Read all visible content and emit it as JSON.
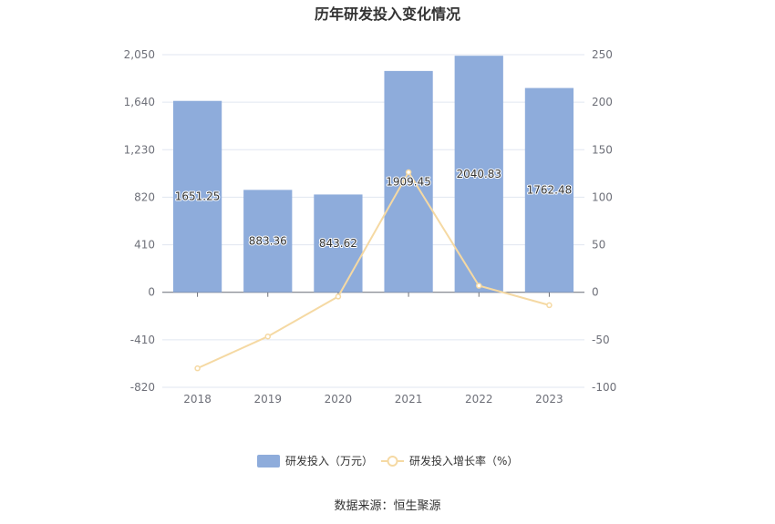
{
  "chart_data": {
    "type": "bar",
    "title": "历年研发投入变化情况",
    "categories": [
      "2018",
      "2019",
      "2020",
      "2021",
      "2022",
      "2023"
    ],
    "series": [
      {
        "name": "研发投入（万元）",
        "type": "bar",
        "axis": "left",
        "values": [
          1651.25,
          883.36,
          843.62,
          1909.45,
          2040.83,
          1762.48
        ],
        "labels": [
          "1651.25",
          "883.36",
          "843.62",
          "1909.45",
          "2040.83",
          "1762.48"
        ],
        "color": "#8eacdb"
      },
      {
        "name": "研发投入增长率（%）",
        "type": "line",
        "axis": "right",
        "values": [
          -80,
          -46.5,
          -4.5,
          126.3,
          6.9,
          -13.6
        ],
        "color": "#f5d9a3"
      }
    ],
    "left_axis": {
      "ylim": [
        -820,
        2050
      ],
      "ticks": [
        "2,050",
        "1,640",
        "1,230",
        "820",
        "410",
        "0",
        "-410",
        "-820"
      ],
      "tick_values": [
        2050,
        1640,
        1230,
        820,
        410,
        0,
        -410,
        -820
      ]
    },
    "right_axis": {
      "ylim": [
        -100,
        250
      ],
      "ticks": [
        "250",
        "200",
        "150",
        "100",
        "50",
        "0",
        "-50",
        "-100"
      ],
      "tick_values": [
        250,
        200,
        150,
        100,
        50,
        0,
        -50,
        -100
      ]
    },
    "grid": true,
    "legend_position": "bottom-center"
  },
  "source": "数据来源：恒生聚源"
}
